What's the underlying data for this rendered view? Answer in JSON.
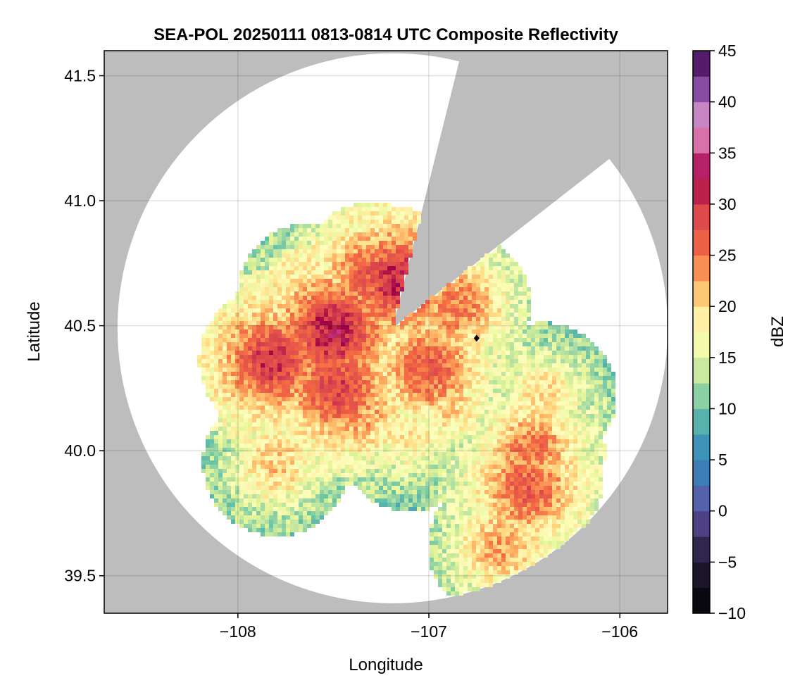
{
  "chart_data": {
    "type": "heatmap",
    "title": "SEA-POL 20250111 0813-0814 UTC Composite Reflectivity",
    "xlabel": "Longitude",
    "ylabel": "Latitude",
    "xlim": [
      -108.7,
      -105.75
    ],
    "ylim": [
      39.35,
      41.6
    ],
    "xticks": [
      -108,
      -107,
      -106
    ],
    "xtick_labels": [
      "−108",
      "−107",
      "−106"
    ],
    "yticks": [
      39.5,
      40.0,
      40.5,
      41.0,
      41.5
    ],
    "ytick_labels": [
      "39.5",
      "40.0",
      "40.5",
      "41.0",
      "41.5"
    ],
    "grid": true,
    "background_color": "#bdbdbd",
    "no_data_color": "#ffffff",
    "radar": {
      "center": [
        -107.19,
        40.49
      ],
      "range_deg_lat": 1.1,
      "blocked_sectors_deg_from_north": [
        [
          14,
          52
        ]
      ]
    },
    "colorbar": {
      "label": "dBZ",
      "min": -10,
      "max": 45,
      "step": 2.5,
      "ticks": [
        -10,
        -5,
        0,
        5,
        10,
        15,
        20,
        25,
        30,
        35,
        40,
        45
      ],
      "tick_labels": [
        "−10",
        "−5",
        "0",
        "5",
        "10",
        "15",
        "20",
        "25",
        "30",
        "35",
        "40",
        "45"
      ],
      "colormap_stops": [
        {
          "v": -10,
          "c": "#000004"
        },
        {
          "v": -5,
          "c": "#221c33"
        },
        {
          "v": -2.5,
          "c": "#3b3266"
        },
        {
          "v": 0,
          "c": "#5e4fa2"
        },
        {
          "v": 2.5,
          "c": "#4a72b3"
        },
        {
          "v": 5,
          "c": "#3288bd"
        },
        {
          "v": 7.5,
          "c": "#48a0b2"
        },
        {
          "v": 10,
          "c": "#66c2a5"
        },
        {
          "v": 12.5,
          "c": "#abdda4"
        },
        {
          "v": 15,
          "c": "#e6f598"
        },
        {
          "v": 17.5,
          "c": "#ffffbf"
        },
        {
          "v": 20,
          "c": "#fee08b"
        },
        {
          "v": 22.5,
          "c": "#fdae61"
        },
        {
          "v": 25,
          "c": "#f46d43"
        },
        {
          "v": 30,
          "c": "#d53e4f"
        },
        {
          "v": 32.5,
          "c": "#9e0142"
        },
        {
          "v": 35,
          "c": "#cb3f8a"
        },
        {
          "v": 37.5,
          "c": "#e7a1c9"
        },
        {
          "v": 40,
          "c": "#a66bbd"
        },
        {
          "v": 42.5,
          "c": "#6a2d86"
        },
        {
          "v": 45,
          "c": "#3d0a4f"
        }
      ]
    },
    "echo_cores": [
      {
        "lon": -107.5,
        "lat": 40.48,
        "dbz": 33
      },
      {
        "lon": -107.82,
        "lat": 40.36,
        "dbz": 31
      },
      {
        "lon": -107.48,
        "lat": 40.25,
        "dbz": 30
      },
      {
        "lon": -107.15,
        "lat": 40.68,
        "dbz": 32
      },
      {
        "lon": -107.3,
        "lat": 40.7,
        "dbz": 28
      },
      {
        "lon": -107.0,
        "lat": 40.33,
        "dbz": 28
      },
      {
        "lon": -106.85,
        "lat": 40.58,
        "dbz": 26
      },
      {
        "lon": -107.62,
        "lat": 40.62,
        "dbz": 22
      },
      {
        "lon": -107.35,
        "lat": 40.15,
        "dbz": 24
      },
      {
        "lon": -106.9,
        "lat": 40.2,
        "dbz": 22
      },
      {
        "lon": -106.48,
        "lat": 39.85,
        "dbz": 28
      },
      {
        "lon": -106.46,
        "lat": 40.0,
        "dbz": 26
      },
      {
        "lon": -106.62,
        "lat": 39.62,
        "dbz": 24
      },
      {
        "lon": -106.4,
        "lat": 40.22,
        "dbz": 21
      },
      {
        "lon": -107.1,
        "lat": 40.05,
        "dbz": 20
      },
      {
        "lon": -107.8,
        "lat": 39.95,
        "dbz": 22
      }
    ],
    "marker": {
      "lon": -106.75,
      "lat": 40.45,
      "shape": "diamond",
      "color": "#000000"
    }
  }
}
